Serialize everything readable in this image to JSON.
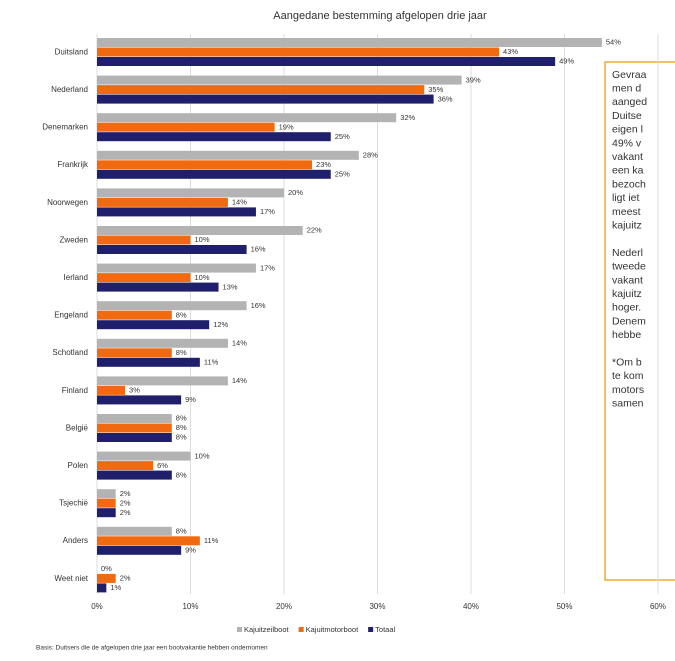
{
  "chart_data": {
    "type": "hbar",
    "subtitle": "Aangedane bestemming afgelopen drie jaar",
    "categories": [
      "Duitsland",
      "Nederland",
      "Denemarken",
      "Frankrijk",
      "Noorwegen",
      "Zweden",
      "Ierland",
      "Engeland",
      "Schotland",
      "Finland",
      "België",
      "Polen",
      "Tsjechië",
      "Anders",
      "Weet niet"
    ],
    "series": [
      {
        "name": "Kajuitzeilboot",
        "color": "#b3b3b3",
        "values": [
          54,
          39,
          32,
          28,
          20,
          22,
          17,
          16,
          14,
          14,
          8,
          10,
          2,
          8,
          0
        ],
        "value_labels": [
          "54%",
          "39%",
          "32%",
          "28%",
          "20%",
          "22%",
          "17%",
          "16%",
          "14%",
          "14%",
          "8%",
          "10%",
          "2%",
          "8%",
          "0%"
        ]
      },
      {
        "name": "Kajuitmotorboot",
        "color": "#f26a10",
        "values": [
          43,
          35,
          19,
          23,
          14,
          10,
          10,
          8,
          8,
          3,
          8,
          6,
          2,
          11,
          2
        ],
        "value_labels": [
          "43%",
          "35%",
          "19%",
          "23%",
          "14%",
          "10%",
          "10%",
          "8%",
          "8%",
          "3%",
          "8%",
          "6%",
          "2%",
          "11%",
          "2%"
        ]
      },
      {
        "name": "Totaal",
        "color": "#1f1f6b",
        "values": [
          49,
          36,
          25,
          25,
          17,
          16,
          13,
          12,
          11,
          9,
          8,
          8,
          2,
          9,
          1
        ],
        "value_labels": [
          "49%",
          "36%",
          "25%",
          "25%",
          "17%",
          "16%",
          "13%",
          "12%",
          "11%",
          "9%",
          "8%",
          "8%",
          "2%",
          "9%",
          "1%"
        ]
      }
    ],
    "xlim": [
      0,
      60
    ],
    "xticks": [
      {
        "value": 0,
        "label": "0%"
      },
      {
        "value": 10,
        "label": "10%"
      },
      {
        "value": 20,
        "label": "20%"
      },
      {
        "value": 30,
        "label": "30%"
      },
      {
        "value": 40,
        "label": "40%"
      },
      {
        "value": 50,
        "label": "50%"
      },
      {
        "value": 60,
        "label": "60%"
      }
    ],
    "grid": true,
    "legend": "bottom",
    "footnote": "Basis: Duitsers die de afgelopen drie jaar een bootvakantie hebben ondernomen",
    "annotation": [
      [
        "Gevraa",
        "men d",
        "aanged",
        "Duitse",
        "eigen l",
        "49% v",
        "vakant",
        "een ka",
        "bezoch",
        "ligt iet",
        "meest",
        "kajuitz"
      ],
      [
        "Nederl",
        "tweede",
        "vakant",
        "kajuitz",
        "hoger.",
        "Denem",
        "hebbe"
      ],
      [
        "*Om b",
        "te kom",
        "motors",
        "samen"
      ]
    ]
  }
}
